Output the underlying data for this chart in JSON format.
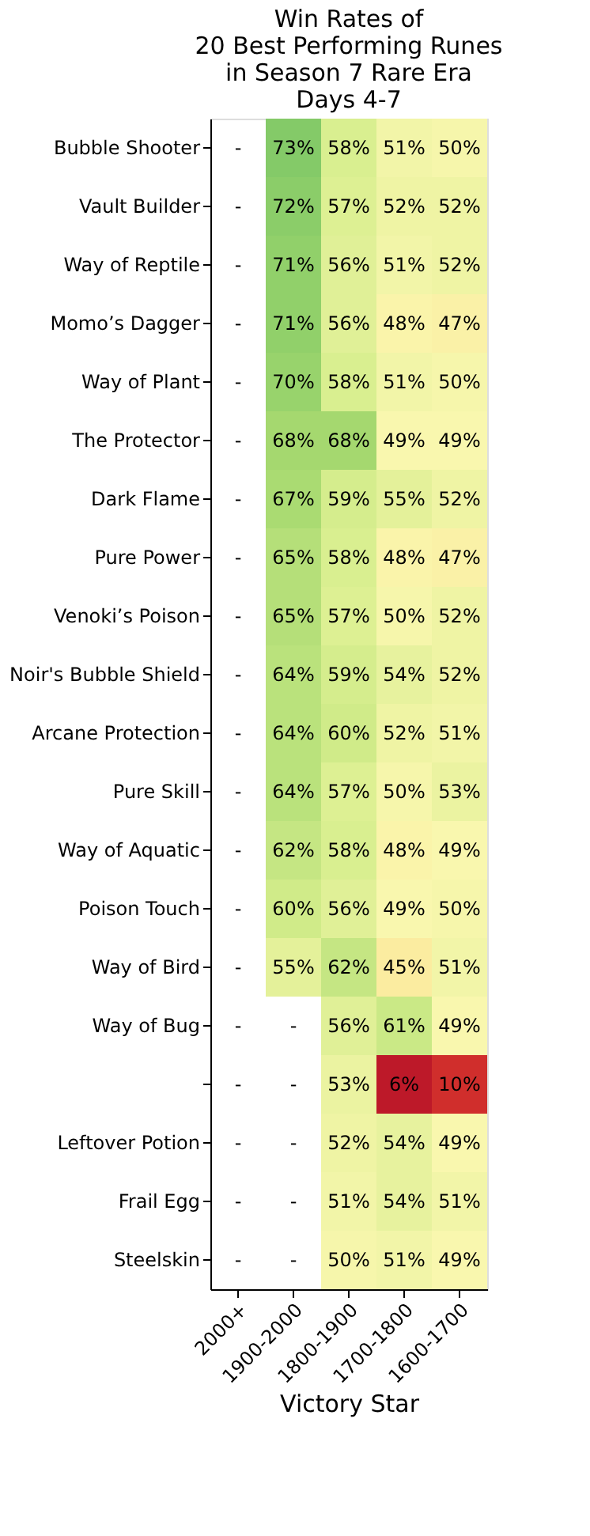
{
  "chart_data": {
    "type": "heatmap",
    "title": "Win Rates of\n20 Best Performing Runes\nin Season 7 Rare Era\nDays 4-7",
    "xlabel": "Victory Star",
    "categories": [
      "2000+",
      "1900-2000",
      "1800-1900",
      "1700-1800",
      "1600-1700"
    ],
    "y_categories": [
      "Bubble Shooter",
      "Vault Builder",
      "Way of Reptile",
      "Momo’s Dagger",
      "Way of Plant",
      "The Protector",
      "Dark Flame",
      "Pure Power",
      "Venoki’s Poison",
      "Noir's Bubble Shield",
      "Arcane Protection",
      "Pure Skill",
      "Way of Aquatic",
      "Poison Touch",
      "Way of Bird",
      "Way of Bug",
      null,
      "Leftover Potion",
      "Frail Egg",
      "Steelskin"
    ],
    "cells": [
      [
        null,
        73,
        58,
        51,
        50
      ],
      [
        null,
        72,
        57,
        52,
        52
      ],
      [
        null,
        71,
        56,
        51,
        52
      ],
      [
        null,
        71,
        56,
        48,
        47
      ],
      [
        null,
        70,
        58,
        51,
        50
      ],
      [
        null,
        68,
        68,
        49,
        49
      ],
      [
        null,
        67,
        59,
        55,
        52
      ],
      [
        null,
        65,
        58,
        48,
        47
      ],
      [
        null,
        65,
        57,
        50,
        52
      ],
      [
        null,
        64,
        59,
        54,
        52
      ],
      [
        null,
        64,
        60,
        52,
        51
      ],
      [
        null,
        64,
        57,
        50,
        53
      ],
      [
        null,
        62,
        58,
        48,
        49
      ],
      [
        null,
        60,
        56,
        49,
        50
      ],
      [
        null,
        55,
        62,
        45,
        51
      ],
      [
        null,
        null,
        56,
        61,
        49
      ],
      [
        null,
        null,
        53,
        6,
        10
      ],
      [
        null,
        null,
        52,
        54,
        49
      ],
      [
        null,
        null,
        51,
        54,
        51
      ],
      [
        null,
        null,
        50,
        51,
        49
      ]
    ],
    "cell_labels": [
      [
        "-",
        "73%",
        "58%",
        "51%",
        "50%"
      ],
      [
        "-",
        "72%",
        "57%",
        "52%",
        "52%"
      ],
      [
        "-",
        "71%",
        "56%",
        "51%",
        "52%"
      ],
      [
        "-",
        "71%",
        "56%",
        "48%",
        "47%"
      ],
      [
        "-",
        "70%",
        "58%",
        "51%",
        "50%"
      ],
      [
        "-",
        "68%",
        "68%",
        "49%",
        "49%"
      ],
      [
        "-",
        "67%",
        "59%",
        "55%",
        "52%"
      ],
      [
        "-",
        "65%",
        "58%",
        "48%",
        "47%"
      ],
      [
        "-",
        "65%",
        "57%",
        "50%",
        "52%"
      ],
      [
        "-",
        "64%",
        "59%",
        "54%",
        "52%"
      ],
      [
        "-",
        "64%",
        "60%",
        "52%",
        "51%"
      ],
      [
        "-",
        "64%",
        "57%",
        "50%",
        "53%"
      ],
      [
        "-",
        "62%",
        "58%",
        "48%",
        "49%"
      ],
      [
        "-",
        "60%",
        "56%",
        "49%",
        "50%"
      ],
      [
        "-",
        "55%",
        "62%",
        "45%",
        "51%"
      ],
      [
        "-",
        "-",
        "56%",
        "61%",
        "49%"
      ],
      [
        "-",
        "-",
        "53%",
        "6%",
        "10%"
      ],
      [
        "-",
        "-",
        "52%",
        "54%",
        "49%"
      ],
      [
        "-",
        "-",
        "51%",
        "54%",
        "51%"
      ],
      [
        "-",
        "-",
        "50%",
        "51%",
        "49%"
      ]
    ]
  }
}
